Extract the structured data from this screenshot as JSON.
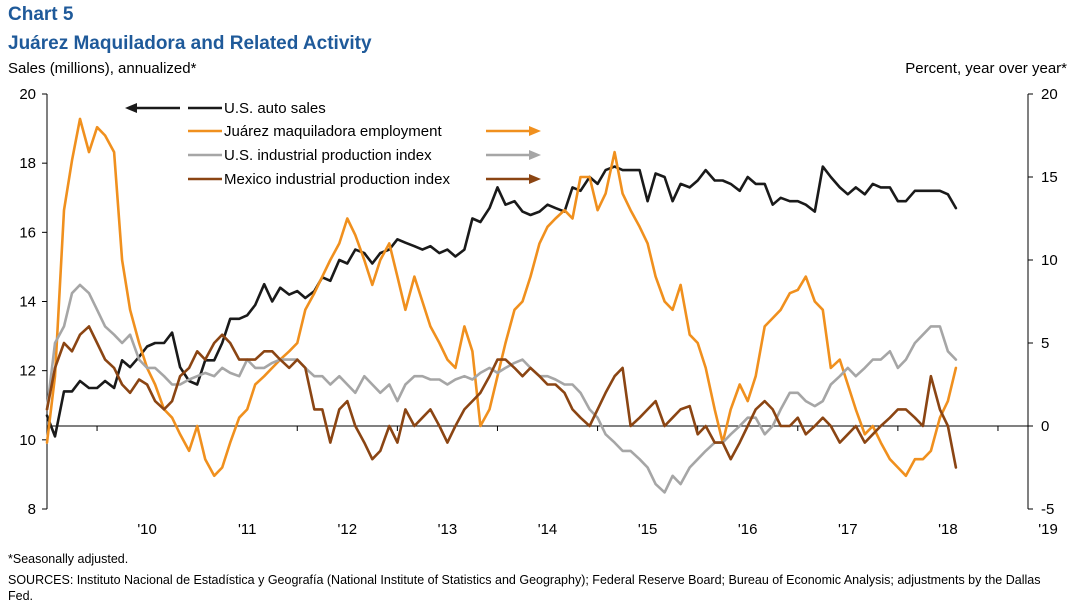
{
  "header": {
    "chart_number": "Chart 5",
    "title": "Juárez Maquiladora and Related Activity",
    "left_axis_label": "Sales (millions), annualized*",
    "right_axis_label": "Percent, year over year*"
  },
  "footer": {
    "footnote": "*Seasonally adjusted.",
    "sources": "SOURCES: Instituto Nacional de Estadística y Geografía (National Institute of Statistics and Geography); Federal Reserve Board; Bureau of Economic Analysis; adjustments by the Dallas Fed."
  },
  "chart_data": {
    "type": "line",
    "x_ticks": [
      "'10",
      "'11",
      "'12",
      "'13",
      "'14",
      "'15",
      "'16",
      "'17",
      "'18",
      "'19"
    ],
    "x_range": [
      2009.5,
      2019.3
    ],
    "left_axis": {
      "range": [
        8,
        20
      ],
      "ticks": [
        8,
        10,
        12,
        14,
        16,
        18,
        20
      ]
    },
    "right_axis": {
      "range": [
        -5,
        20
      ],
      "ticks": [
        -5,
        0,
        5,
        10,
        15,
        20
      ]
    },
    "zero_line": true,
    "legend_position": "top-center",
    "series": [
      {
        "name": "U.S. auto sales",
        "axis": "left",
        "color": "#1a1a1a",
        "legend_arrow": "left",
        "x": [
          2009.5,
          2009.58,
          2009.67,
          2009.75,
          2009.83,
          2009.92,
          2010.0,
          2010.08,
          2010.17,
          2010.25,
          2010.33,
          2010.42,
          2010.5,
          2010.58,
          2010.67,
          2010.75,
          2010.83,
          2010.92,
          2011.0,
          2011.08,
          2011.17,
          2011.25,
          2011.33,
          2011.42,
          2011.5,
          2011.58,
          2011.67,
          2011.75,
          2011.83,
          2011.92,
          2012.0,
          2012.08,
          2012.17,
          2012.25,
          2012.33,
          2012.42,
          2012.5,
          2012.58,
          2012.67,
          2012.75,
          2012.83,
          2012.92,
          2013.0,
          2013.08,
          2013.17,
          2013.25,
          2013.33,
          2013.42,
          2013.5,
          2013.58,
          2013.67,
          2013.75,
          2013.83,
          2013.92,
          2014.0,
          2014.08,
          2014.17,
          2014.25,
          2014.33,
          2014.42,
          2014.5,
          2014.58,
          2014.67,
          2014.75,
          2014.83,
          2014.92,
          2015.0,
          2015.08,
          2015.17,
          2015.25,
          2015.33,
          2015.42,
          2015.5,
          2015.58,
          2015.67,
          2015.75,
          2015.83,
          2015.92,
          2016.0,
          2016.08,
          2016.17,
          2016.25,
          2016.33,
          2016.42,
          2016.5,
          2016.58,
          2016.67,
          2016.75,
          2016.83,
          2016.92,
          2017.0,
          2017.08,
          2017.17,
          2017.25,
          2017.33,
          2017.42,
          2017.5,
          2017.58,
          2017.67,
          2017.75,
          2017.83,
          2017.92,
          2018.0,
          2018.08,
          2018.17,
          2018.25,
          2018.33,
          2018.42,
          2018.5,
          2018.58
        ],
        "y": [
          10.7,
          10.1,
          11.4,
          11.4,
          11.7,
          11.5,
          11.5,
          11.7,
          11.5,
          12.3,
          12.1,
          12.4,
          12.7,
          12.8,
          12.8,
          13.1,
          12.1,
          11.7,
          11.6,
          12.3,
          12.3,
          12.8,
          13.5,
          13.5,
          13.6,
          13.9,
          14.5,
          14.0,
          14.4,
          14.2,
          14.3,
          14.1,
          14.3,
          14.7,
          14.6,
          15.2,
          15.1,
          15.5,
          15.4,
          15.1,
          15.4,
          15.5,
          15.8,
          15.7,
          15.6,
          15.5,
          15.6,
          15.4,
          15.5,
          15.3,
          15.5,
          16.4,
          16.3,
          16.7,
          17.3,
          16.8,
          16.9,
          16.6,
          16.5,
          16.6,
          16.8,
          16.7,
          16.6,
          17.3,
          17.2,
          17.6,
          17.4,
          17.8,
          17.9,
          17.8,
          17.8,
          17.8,
          16.9,
          17.7,
          17.6,
          16.9,
          17.4,
          17.3,
          17.5,
          17.8,
          17.5,
          17.5,
          17.4,
          17.2,
          17.6,
          17.4,
          17.4,
          16.8,
          17.0,
          16.9,
          16.9,
          16.8,
          16.6,
          17.9,
          17.6,
          17.3,
          17.1,
          17.3,
          17.1,
          17.4,
          17.3,
          17.3,
          16.9,
          16.9,
          17.2,
          17.2,
          17.2,
          17.2,
          17.1,
          16.7
        ]
      },
      {
        "name": "Juárez maquiladora employment",
        "axis": "right",
        "color": "#f0901e",
        "legend_arrow": "right",
        "x": [
          2009.5,
          2009.58,
          2009.67,
          2009.75,
          2009.83,
          2009.92,
          2010.0,
          2010.08,
          2010.17,
          2010.25,
          2010.33,
          2010.42,
          2010.5,
          2010.58,
          2010.67,
          2010.75,
          2010.83,
          2010.92,
          2011.0,
          2011.08,
          2011.17,
          2011.25,
          2011.33,
          2011.42,
          2011.5,
          2011.58,
          2011.67,
          2011.75,
          2011.83,
          2011.92,
          2012.0,
          2012.08,
          2012.17,
          2012.25,
          2012.33,
          2012.42,
          2012.5,
          2012.58,
          2012.67,
          2012.75,
          2012.83,
          2012.92,
          2013.0,
          2013.08,
          2013.17,
          2013.25,
          2013.33,
          2013.42,
          2013.5,
          2013.58,
          2013.67,
          2013.75,
          2013.83,
          2013.92,
          2014.0,
          2014.08,
          2014.17,
          2014.25,
          2014.33,
          2014.42,
          2014.5,
          2014.58,
          2014.67,
          2014.75,
          2014.83,
          2014.92,
          2015.0,
          2015.08,
          2015.17,
          2015.25,
          2015.33,
          2015.42,
          2015.5,
          2015.58,
          2015.67,
          2015.75,
          2015.83,
          2015.92,
          2016.0,
          2016.08,
          2016.17,
          2016.25,
          2016.33,
          2016.42,
          2016.5,
          2016.58,
          2016.67,
          2016.75,
          2016.83,
          2016.92,
          2017.0,
          2017.08,
          2017.17,
          2017.25,
          2017.33,
          2017.42,
          2017.5,
          2017.58,
          2017.67,
          2017.75,
          2017.83,
          2017.92,
          2018.0,
          2018.08,
          2018.17,
          2018.25,
          2018.33,
          2018.42,
          2018.5,
          2018.58
        ],
        "y": [
          -1,
          3,
          13,
          16,
          18.5,
          16.5,
          18,
          17.5,
          16.5,
          10,
          7,
          5,
          3.5,
          2.5,
          1,
          0.5,
          -0.5,
          -1.5,
          0,
          -2,
          -3,
          -2.5,
          -1,
          0.5,
          1,
          2.5,
          3,
          3.5,
          4,
          4.5,
          5,
          7,
          8,
          9,
          10,
          11,
          12.5,
          11.5,
          10,
          8.5,
          10,
          11,
          9,
          7,
          9,
          7.5,
          6,
          5,
          4,
          3.5,
          6,
          4.5,
          0,
          1,
          3,
          5,
          7,
          7.5,
          9,
          11,
          12,
          12.5,
          13,
          12.5,
          15,
          15,
          13,
          14,
          16.5,
          14,
          13,
          12,
          11,
          9,
          7.5,
          7,
          8.5,
          5.5,
          5,
          3.5,
          1,
          -1,
          1,
          2.5,
          1.5,
          3,
          6,
          6.5,
          7,
          8,
          8.2,
          9,
          7.5,
          7,
          3.5,
          4,
          2.5,
          1,
          -0.5,
          0,
          -1,
          -2,
          -2.5,
          -3,
          -2,
          -2,
          -1.5,
          0.5,
          1.5,
          3.5
        ]
      },
      {
        "name": "U.S. industrial production index",
        "axis": "right",
        "color": "#a6a6a6",
        "legend_arrow": "right",
        "x": [
          2009.5,
          2009.58,
          2009.67,
          2009.75,
          2009.83,
          2009.92,
          2010.0,
          2010.08,
          2010.17,
          2010.25,
          2010.33,
          2010.42,
          2010.5,
          2010.58,
          2010.67,
          2010.75,
          2010.83,
          2010.92,
          2011.0,
          2011.08,
          2011.17,
          2011.25,
          2011.33,
          2011.42,
          2011.5,
          2011.58,
          2011.67,
          2011.75,
          2011.83,
          2011.92,
          2012.0,
          2012.08,
          2012.17,
          2012.25,
          2012.33,
          2012.42,
          2012.5,
          2012.58,
          2012.67,
          2012.75,
          2012.83,
          2012.92,
          2013.0,
          2013.08,
          2013.17,
          2013.25,
          2013.33,
          2013.42,
          2013.5,
          2013.58,
          2013.67,
          2013.75,
          2013.83,
          2013.92,
          2014.0,
          2014.08,
          2014.17,
          2014.25,
          2014.33,
          2014.42,
          2014.5,
          2014.58,
          2014.67,
          2014.75,
          2014.83,
          2014.92,
          2015.0,
          2015.08,
          2015.17,
          2015.25,
          2015.33,
          2015.42,
          2015.5,
          2015.58,
          2015.67,
          2015.75,
          2015.83,
          2015.92,
          2016.0,
          2016.08,
          2016.17,
          2016.25,
          2016.33,
          2016.42,
          2016.5,
          2016.58,
          2016.67,
          2016.75,
          2016.83,
          2016.92,
          2017.0,
          2017.08,
          2017.17,
          2017.25,
          2017.33,
          2017.42,
          2017.5,
          2017.58,
          2017.67,
          2017.75,
          2017.83,
          2017.92,
          2018.0,
          2018.08,
          2018.17,
          2018.25,
          2018.33,
          2018.42,
          2018.5,
          2018.58
        ],
        "y": [
          1,
          5,
          6,
          8,
          8.5,
          8,
          7,
          6,
          5.5,
          5,
          5.5,
          4,
          3.5,
          3.5,
          3,
          2.5,
          2.5,
          2.8,
          3,
          3.2,
          3,
          3.5,
          3.2,
          3,
          4,
          3.5,
          3.5,
          3.8,
          4,
          4,
          4,
          3.5,
          3,
          3,
          2.5,
          3,
          2.5,
          2,
          3,
          2.5,
          2,
          2.5,
          1.5,
          2.5,
          3,
          3,
          2.8,
          2.8,
          2.5,
          2.8,
          3,
          2.8,
          3.2,
          3.5,
          3.2,
          3.5,
          3.8,
          4,
          3.5,
          3,
          3,
          2.8,
          2.5,
          2.5,
          2,
          1,
          0.5,
          -0.5,
          -1,
          -1.5,
          -1.5,
          -2,
          -2.5,
          -3.5,
          -4,
          -3,
          -3.5,
          -2.5,
          -2,
          -1.5,
          -1,
          -1,
          -0.5,
          0,
          0.5,
          0.5,
          -0.5,
          0,
          1,
          2,
          2,
          1.5,
          1.2,
          1.5,
          2.5,
          3,
          3.5,
          3,
          3.5,
          4,
          4,
          4.5,
          3.5,
          4,
          5,
          5.5,
          6,
          6,
          4.5,
          4
        ]
      },
      {
        "name": "Mexico industrial production index",
        "axis": "right",
        "color": "#8b4513",
        "legend_arrow": "right",
        "x": [
          2009.5,
          2009.58,
          2009.67,
          2009.75,
          2009.83,
          2009.92,
          2010.0,
          2010.08,
          2010.17,
          2010.25,
          2010.33,
          2010.42,
          2010.5,
          2010.58,
          2010.67,
          2010.75,
          2010.83,
          2010.92,
          2011.0,
          2011.08,
          2011.17,
          2011.25,
          2011.33,
          2011.42,
          2011.5,
          2011.58,
          2011.67,
          2011.75,
          2011.83,
          2011.92,
          2012.0,
          2012.08,
          2012.17,
          2012.25,
          2012.33,
          2012.42,
          2012.5,
          2012.58,
          2012.67,
          2012.75,
          2012.83,
          2012.92,
          2013.0,
          2013.08,
          2013.17,
          2013.25,
          2013.33,
          2013.42,
          2013.5,
          2013.58,
          2013.67,
          2013.75,
          2013.83,
          2013.92,
          2014.0,
          2014.08,
          2014.17,
          2014.25,
          2014.33,
          2014.42,
          2014.5,
          2014.58,
          2014.67,
          2014.75,
          2014.83,
          2014.92,
          2015.0,
          2015.08,
          2015.17,
          2015.25,
          2015.33,
          2015.42,
          2015.5,
          2015.58,
          2015.67,
          2015.75,
          2015.83,
          2015.92,
          2016.0,
          2016.08,
          2016.17,
          2016.25,
          2016.33,
          2016.42,
          2016.5,
          2016.58,
          2016.67,
          2016.75,
          2016.83,
          2016.92,
          2017.0,
          2017.08,
          2017.17,
          2017.25,
          2017.33,
          2017.42,
          2017.5,
          2017.58,
          2017.67,
          2017.75,
          2017.83,
          2017.92,
          2018.0,
          2018.08,
          2018.17,
          2018.25,
          2018.33,
          2018.42,
          2018.5,
          2018.58
        ],
        "y": [
          1,
          3.5,
          5,
          4.5,
          5.5,
          6,
          5,
          4,
          3.5,
          2.5,
          2,
          2.8,
          2.5,
          1.5,
          1,
          1.5,
          3,
          3.5,
          4.5,
          4,
          5,
          5.5,
          5,
          4,
          4,
          4,
          4.5,
          4.5,
          4,
          3.5,
          4,
          3.5,
          1,
          1,
          -1,
          1,
          1.5,
          0,
          -1,
          -2,
          -1.5,
          0,
          -1,
          1,
          0,
          0.5,
          1,
          0,
          -1,
          0,
          1,
          1.5,
          2,
          3,
          4,
          4,
          3.5,
          3,
          3.5,
          3,
          2.5,
          2.5,
          2,
          1,
          0.5,
          0,
          1,
          2,
          3,
          3.5,
          0,
          0.5,
          1,
          1.5,
          0,
          0.5,
          1,
          1.2,
          -0.5,
          0,
          -1,
          -1,
          -2,
          -1,
          0,
          1,
          1.5,
          1,
          0,
          0,
          0.5,
          -0.5,
          0,
          0.5,
          0,
          -1,
          -0.5,
          0,
          -1,
          -0.5,
          0,
          0.5,
          1,
          1,
          0.5,
          0,
          3,
          1,
          0,
          -2.5
        ]
      }
    ]
  }
}
